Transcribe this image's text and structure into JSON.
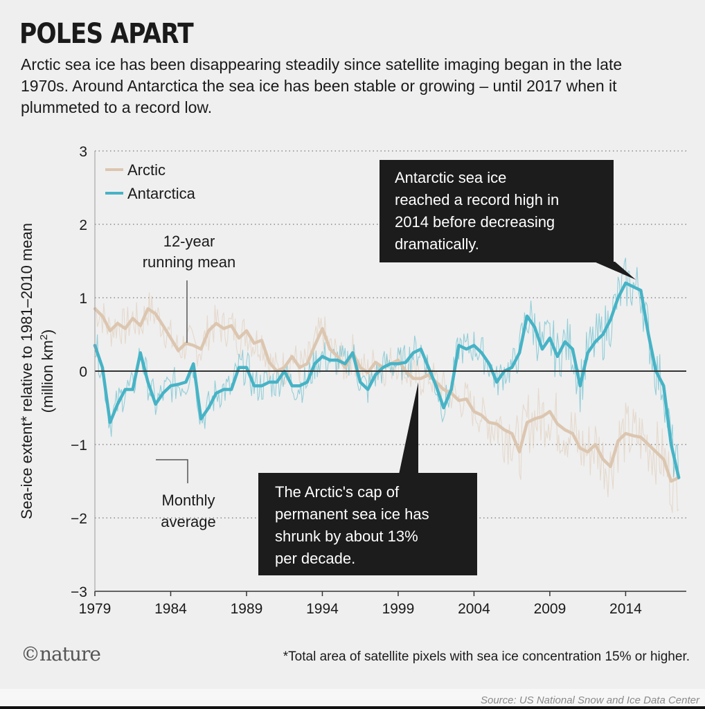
{
  "header": {
    "title": "POLES APART",
    "subtitle": "Arctic sea ice has been disappearing steadily since satellite imaging began in the late 1970s. Around Antarctica the sea ice has been stable or growing – until 2017 when it plummeted to a record low."
  },
  "footer": {
    "logo": "©nature",
    "footnote": "*Total area of satellite pixels with sea ice concentration 15% or higher.",
    "source": "Source: US National Snow and Ice Data Center"
  },
  "colors": {
    "arctic": "#dcc6b0",
    "antarctica": "#46b3c6",
    "box": "#1c1c1c"
  },
  "chart_data": {
    "type": "line",
    "title": "",
    "xlabel": "",
    "ylabel_line1": "Sea-ice extent* relative to 1981–2010 mean",
    "ylabel_line2": "(million km",
    "ylabel_sup": "2",
    "ylabel_close": ")",
    "xlim": [
      1979,
      2018
    ],
    "ylim": [
      -3,
      3
    ],
    "xticks": [
      1979,
      1984,
      1989,
      1994,
      1999,
      2004,
      2009,
      2014
    ],
    "yticks": [
      3,
      2,
      1,
      0,
      -1,
      -2,
      -3
    ],
    "ytick_labels": [
      "3",
      "2",
      "1",
      "0",
      "−1",
      "−2",
      "−3"
    ],
    "grid": "horizontal-dotted",
    "legend": [
      {
        "name": "Arctic",
        "color": "#dcc6b0"
      },
      {
        "name": "Antarctica",
        "color": "#46b3c6"
      }
    ],
    "annotations": {
      "running_mean": [
        "12-year",
        "running mean"
      ],
      "monthly": [
        "Monthly",
        "average"
      ],
      "antarctic_box": [
        "Antarctic sea ice",
        "reached a record high in",
        "2014 before decreasing",
        "dramatically."
      ],
      "arctic_box": [
        "The Arctic's cap of",
        "permanent sea ice has",
        "shrunk by about 13%",
        "per decade."
      ]
    },
    "series": [
      {
        "name": "Arctic",
        "x": [
          1979.0,
          1979.5,
          1980.0,
          1980.5,
          1981.0,
          1981.5,
          1982.0,
          1982.5,
          1983.0,
          1983.5,
          1984.0,
          1984.5,
          1985.0,
          1985.5,
          1986.0,
          1986.5,
          1987.0,
          1987.5,
          1988.0,
          1988.5,
          1989.0,
          1989.5,
          1990.0,
          1990.5,
          1991.0,
          1991.5,
          1992.0,
          1992.5,
          1993.0,
          1993.5,
          1994.0,
          1994.5,
          1995.0,
          1995.5,
          1996.0,
          1996.5,
          1997.0,
          1997.5,
          1998.0,
          1998.5,
          1999.0,
          1999.5,
          2000.0,
          2000.5,
          2001.0,
          2001.5,
          2002.0,
          2002.5,
          2003.0,
          2003.5,
          2004.0,
          2004.5,
          2005.0,
          2005.5,
          2006.0,
          2006.5,
          2007.0,
          2007.5,
          2008.0,
          2008.5,
          2009.0,
          2009.5,
          2010.0,
          2010.5,
          2011.0,
          2011.5,
          2012.0,
          2012.5,
          2013.0,
          2013.5,
          2014.0,
          2014.5,
          2015.0,
          2015.5,
          2016.0,
          2016.5,
          2017.0,
          2017.5
        ],
        "y": [
          0.85,
          0.75,
          0.55,
          0.65,
          0.58,
          0.72,
          0.62,
          0.85,
          0.78,
          0.62,
          0.45,
          0.28,
          0.38,
          0.35,
          0.3,
          0.55,
          0.65,
          0.58,
          0.62,
          0.45,
          0.55,
          0.38,
          0.42,
          0.12,
          0.0,
          0.05,
          0.2,
          0.05,
          0.1,
          0.35,
          0.58,
          0.3,
          0.2,
          0.05,
          0.25,
          0.05,
          -0.02,
          0.12,
          0.05,
          0.1,
          0.15,
          0.0,
          -0.1,
          -0.1,
          -0.05,
          -0.15,
          -0.25,
          -0.3,
          -0.4,
          -0.38,
          -0.55,
          -0.6,
          -0.7,
          -0.72,
          -0.8,
          -0.85,
          -1.1,
          -0.7,
          -0.65,
          -0.62,
          -0.55,
          -0.72,
          -0.8,
          -0.85,
          -1.05,
          -1.1,
          -1.0,
          -1.2,
          -1.3,
          -0.95,
          -0.85,
          -0.88,
          -0.9,
          -1.0,
          -1.1,
          -1.2,
          -1.5,
          -1.45
        ]
      },
      {
        "name": "Antarctica",
        "x": [
          1979.0,
          1979.5,
          1980.0,
          1980.5,
          1981.0,
          1981.5,
          1982.0,
          1982.5,
          1983.0,
          1983.5,
          1984.0,
          1984.5,
          1985.0,
          1985.5,
          1986.0,
          1986.5,
          1987.0,
          1987.5,
          1988.0,
          1988.5,
          1989.0,
          1989.5,
          1990.0,
          1990.5,
          1991.0,
          1991.5,
          1992.0,
          1992.5,
          1993.0,
          1993.5,
          1994.0,
          1994.5,
          1995.0,
          1995.5,
          1996.0,
          1996.5,
          1997.0,
          1997.5,
          1998.0,
          1998.5,
          1999.0,
          1999.5,
          2000.0,
          2000.5,
          2001.0,
          2001.5,
          2002.0,
          2002.5,
          2003.0,
          2003.5,
          2004.0,
          2004.5,
          2005.0,
          2005.5,
          2006.0,
          2006.5,
          2007.0,
          2007.5,
          2008.0,
          2008.5,
          2009.0,
          2009.5,
          2010.0,
          2010.5,
          2011.0,
          2011.5,
          2012.0,
          2012.5,
          2013.0,
          2013.5,
          2014.0,
          2014.5,
          2015.0,
          2015.5,
          2016.0,
          2016.5,
          2017.0,
          2017.5
        ],
        "y": [
          0.35,
          0.05,
          -0.7,
          -0.45,
          -0.25,
          -0.25,
          0.25,
          -0.15,
          -0.45,
          -0.3,
          -0.2,
          -0.18,
          -0.15,
          0.1,
          -0.65,
          -0.5,
          -0.3,
          -0.25,
          -0.25,
          0.05,
          0.05,
          -0.2,
          -0.2,
          -0.15,
          -0.15,
          0.0,
          -0.2,
          -0.2,
          -0.15,
          0.1,
          0.2,
          0.15,
          0.15,
          0.1,
          0.25,
          -0.15,
          -0.25,
          -0.05,
          0.05,
          0.1,
          0.1,
          0.12,
          0.25,
          0.3,
          0.05,
          -0.2,
          -0.5,
          -0.25,
          0.35,
          0.3,
          0.35,
          0.25,
          0.1,
          -0.15,
          0.0,
          0.05,
          0.25,
          0.75,
          0.6,
          0.3,
          0.45,
          0.2,
          0.4,
          0.3,
          -0.2,
          0.25,
          0.4,
          0.5,
          0.7,
          1.0,
          1.2,
          1.15,
          1.1,
          0.5,
          0.0,
          -0.2,
          -1.0,
          -1.45
        ]
      }
    ]
  }
}
